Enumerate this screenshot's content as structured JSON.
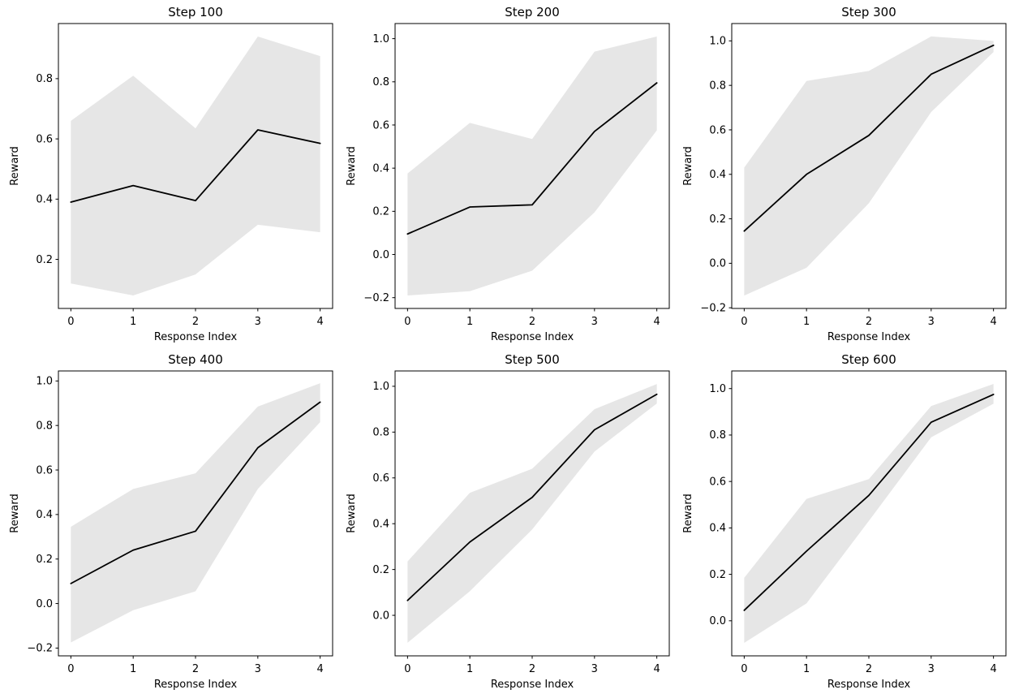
{
  "figure": {
    "background": "#ffffff",
    "band_color": "#e6e6e6",
    "line_color": "#000000",
    "spine_color": "#000000",
    "text_color": "#000000",
    "rows": 2,
    "cols": 3
  },
  "chart_data": [
    {
      "type": "line",
      "title": "Step 100",
      "xlabel": "Response Index",
      "ylabel": "Reward",
      "x": [
        0,
        1,
        2,
        3,
        4
      ],
      "xticks": [
        0,
        1,
        2,
        3,
        4
      ],
      "xlim": [
        -0.2,
        4.2
      ],
      "yticks": [
        0.2,
        0.4,
        0.6,
        0.8
      ],
      "ylim": [
        0.037,
        0.983
      ],
      "grid": false,
      "legend": null,
      "series": [
        {
          "name": "mean-reward",
          "values": [
            0.39,
            0.445,
            0.395,
            0.63,
            0.585
          ]
        },
        {
          "name": "band-upper",
          "values": [
            0.66,
            0.81,
            0.635,
            0.94,
            0.875
          ]
        },
        {
          "name": "band-lower",
          "values": [
            0.12,
            0.08,
            0.15,
            0.315,
            0.29
          ]
        }
      ]
    },
    {
      "type": "line",
      "title": "Step 200",
      "xlabel": "Response Index",
      "ylabel": "Reward",
      "x": [
        0,
        1,
        2,
        3,
        4
      ],
      "xticks": [
        0,
        1,
        2,
        3,
        4
      ],
      "xlim": [
        -0.2,
        4.2
      ],
      "yticks": [
        -0.2,
        0.0,
        0.2,
        0.4,
        0.6,
        0.8,
        1.0
      ],
      "ylim": [
        -0.25,
        1.07
      ],
      "grid": false,
      "legend": null,
      "series": [
        {
          "name": "mean-reward",
          "values": [
            0.095,
            0.22,
            0.23,
            0.57,
            0.795
          ]
        },
        {
          "name": "band-upper",
          "values": [
            0.375,
            0.61,
            0.535,
            0.94,
            1.01
          ]
        },
        {
          "name": "band-lower",
          "values": [
            -0.19,
            -0.17,
            -0.075,
            0.195,
            0.575
          ]
        }
      ]
    },
    {
      "type": "line",
      "title": "Step 300",
      "xlabel": "Response Index",
      "ylabel": "Reward",
      "x": [
        0,
        1,
        2,
        3,
        4
      ],
      "xticks": [
        0,
        1,
        2,
        3,
        4
      ],
      "xlim": [
        -0.2,
        4.2
      ],
      "yticks": [
        -0.2,
        0.0,
        0.2,
        0.4,
        0.6,
        0.8,
        1.0
      ],
      "ylim": [
        -0.203,
        1.078
      ],
      "grid": false,
      "legend": null,
      "series": [
        {
          "name": "mean-reward",
          "values": [
            0.145,
            0.4,
            0.575,
            0.85,
            0.98
          ]
        },
        {
          "name": "band-upper",
          "values": [
            0.43,
            0.82,
            0.865,
            1.02,
            1.0
          ]
        },
        {
          "name": "band-lower",
          "values": [
            -0.145,
            -0.02,
            0.27,
            0.68,
            0.95
          ]
        }
      ]
    },
    {
      "type": "line",
      "title": "Step 400",
      "xlabel": "Response Index",
      "ylabel": "Reward",
      "x": [
        0,
        1,
        2,
        3,
        4
      ],
      "xticks": [
        0,
        1,
        2,
        3,
        4
      ],
      "xlim": [
        -0.2,
        4.2
      ],
      "yticks": [
        -0.2,
        0.0,
        0.2,
        0.4,
        0.6,
        0.8,
        1.0
      ],
      "ylim": [
        -0.235,
        1.045
      ],
      "grid": false,
      "legend": null,
      "series": [
        {
          "name": "mean-reward",
          "values": [
            0.09,
            0.24,
            0.325,
            0.7,
            0.905
          ]
        },
        {
          "name": "band-upper",
          "values": [
            0.345,
            0.515,
            0.585,
            0.885,
            0.99
          ]
        },
        {
          "name": "band-lower",
          "values": [
            -0.175,
            -0.03,
            0.055,
            0.515,
            0.815
          ]
        }
      ]
    },
    {
      "type": "line",
      "title": "Step 500",
      "xlabel": "Response Index",
      "ylabel": "Reward",
      "x": [
        0,
        1,
        2,
        3,
        4
      ],
      "xticks": [
        0,
        1,
        2,
        3,
        4
      ],
      "xlim": [
        -0.2,
        4.2
      ],
      "yticks": [
        0.0,
        0.2,
        0.4,
        0.6,
        0.8,
        1.0
      ],
      "ylim": [
        -0.177,
        1.067
      ],
      "grid": false,
      "legend": null,
      "series": [
        {
          "name": "mean-reward",
          "values": [
            0.065,
            0.32,
            0.515,
            0.81,
            0.965
          ]
        },
        {
          "name": "band-upper",
          "values": [
            0.235,
            0.535,
            0.64,
            0.9,
            1.01
          ]
        },
        {
          "name": "band-lower",
          "values": [
            -0.12,
            0.105,
            0.375,
            0.715,
            0.925
          ]
        }
      ]
    },
    {
      "type": "line",
      "title": "Step 600",
      "xlabel": "Response Index",
      "ylabel": "Reward",
      "x": [
        0,
        1,
        2,
        3,
        4
      ],
      "xticks": [
        0,
        1,
        2,
        3,
        4
      ],
      "xlim": [
        -0.2,
        4.2
      ],
      "yticks": [
        0.0,
        0.2,
        0.4,
        0.6,
        0.8,
        1.0
      ],
      "ylim": [
        -0.151,
        1.076
      ],
      "grid": false,
      "legend": null,
      "series": [
        {
          "name": "mean-reward",
          "values": [
            0.045,
            0.3,
            0.54,
            0.855,
            0.975
          ]
        },
        {
          "name": "band-upper",
          "values": [
            0.185,
            0.525,
            0.61,
            0.925,
            1.02
          ]
        },
        {
          "name": "band-lower",
          "values": [
            -0.095,
            0.075,
            0.43,
            0.79,
            0.935
          ]
        }
      ]
    }
  ]
}
